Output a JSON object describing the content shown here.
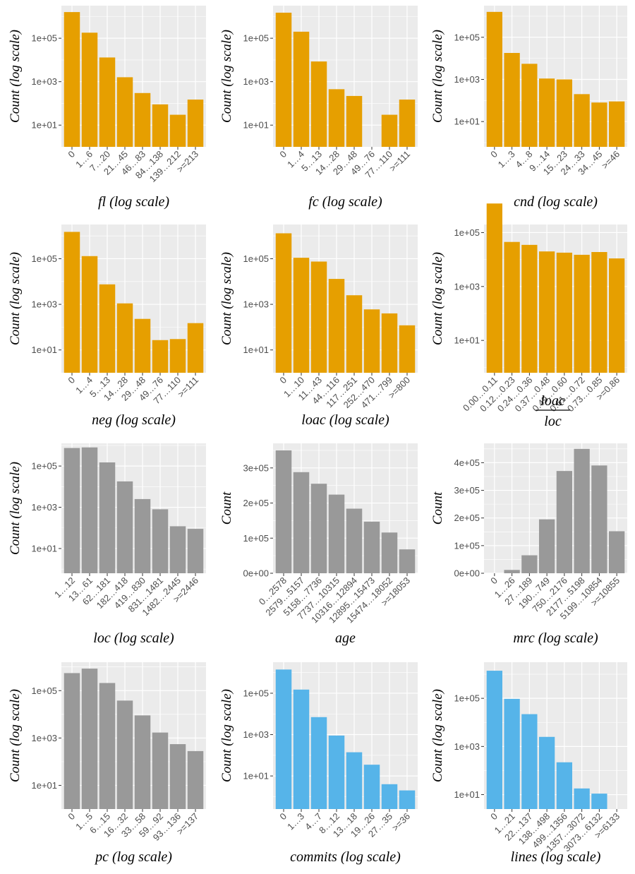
{
  "colors": {
    "orange": "#E69F00",
    "gray": "#999999",
    "blue": "#56B4E9",
    "panel": "#EBEBEB",
    "grid": "#FFFFFF"
  },
  "chart_data": [
    {
      "type": "bar",
      "scale": "log",
      "color": "orange",
      "ylabel": "Count (log scale)",
      "xlabel": "fl (log scale)",
      "categories": [
        "0",
        "1…6",
        "7…20",
        "21…45",
        "46…83",
        "84…138",
        "139…212",
        ">=213"
      ],
      "values": [
        1600000,
        180000,
        13000,
        1600,
        300,
        90,
        30,
        150
      ],
      "yticks": [
        "1e+01",
        "1e+03",
        "1e+05"
      ]
    },
    {
      "type": "bar",
      "scale": "log",
      "color": "orange",
      "ylabel": "Count (log scale)",
      "xlabel": "fc (log scale)",
      "categories": [
        "0",
        "1…4",
        "5…13",
        "14…28",
        "29…48",
        "49…76",
        "77…110",
        ">=111"
      ],
      "values": [
        1500000,
        200000,
        8500,
        450,
        220,
        null,
        30,
        150
      ],
      "yticks": [
        "1e+01",
        "1e+03",
        "1e+05"
      ]
    },
    {
      "type": "bar",
      "scale": "log",
      "color": "orange",
      "ylabel": "Count (log scale)",
      "xlabel": "cnd (log scale)",
      "categories": [
        "0",
        "1…3",
        "4…8",
        "9…14",
        "15…23",
        "24…33",
        "34…45",
        ">=46"
      ],
      "values": [
        1600000,
        18000,
        5500,
        1100,
        1000,
        200,
        80,
        90
      ],
      "yticks": [
        "1e+01",
        "1e+03",
        "1e+05"
      ]
    },
    {
      "type": "bar",
      "scale": "log",
      "color": "orange",
      "ylabel": "Count (log scale)",
      "xlabel": "neg (log scale)",
      "categories": [
        "0",
        "1…4",
        "5…13",
        "14…28",
        "29…48",
        "49…76",
        "77…110",
        ">=111"
      ],
      "values": [
        1500000,
        130000,
        7500,
        1100,
        230,
        27,
        30,
        150
      ],
      "yticks": [
        "1e+01",
        "1e+03",
        "1e+05"
      ]
    },
    {
      "type": "bar",
      "scale": "log",
      "color": "orange",
      "ylabel": "Count (log scale)",
      "xlabel": "loac (log scale)",
      "categories": [
        "0",
        "1…10",
        "11…43",
        "44…116",
        "117…251",
        "252…470",
        "471…799",
        ">=800"
      ],
      "values": [
        1300000,
        110000,
        75000,
        13000,
        2500,
        600,
        400,
        120
      ],
      "yticks": [
        "1e+01",
        "1e+03",
        "1e+05"
      ]
    },
    {
      "type": "bar",
      "scale": "log",
      "color": "orange",
      "ylabel": "Count (log scale)",
      "xlabel_numerator": "loac",
      "xlabel_denominator": "loc",
      "categories": [
        "0.00…0.11",
        "0.12…0.23",
        "0.24…0.36",
        "0.37…0.48",
        "0.49…0.60",
        "0.61…0.72",
        "0.73…0.85",
        ">=0.86"
      ],
      "values": [
        1200000,
        45000,
        35000,
        20000,
        18000,
        15000,
        19000,
        11000
      ],
      "yticks": [
        "1e+01",
        "1e+03",
        "1e+05"
      ]
    },
    {
      "type": "bar",
      "scale": "log",
      "color": "gray",
      "ylabel": "Count (log scale)",
      "xlabel": "loc (log scale)",
      "categories": [
        "1…12",
        "13…61",
        "62…181",
        "182…418",
        "419…830",
        "831…1481",
        "1482…2445",
        ">=2446"
      ],
      "values": [
        750000,
        800000,
        150000,
        18000,
        2500,
        800,
        120,
        90
      ],
      "yticks": [
        "1e+01",
        "1e+03",
        "1e+05"
      ]
    },
    {
      "type": "bar",
      "scale": "linear",
      "color": "gray",
      "ylabel": "Count",
      "xlabel": "age",
      "categories": [
        "0…2578",
        "2579…5157",
        "5158…7736",
        "7737…10315",
        "10316…12894",
        "12895…15473",
        "15474…18052",
        ">=18053"
      ],
      "values": [
        350000,
        288000,
        255000,
        224000,
        184000,
        147000,
        116000,
        68000
      ],
      "ylim": [
        0,
        370000
      ],
      "yticks": [
        "0e+00",
        "1e+05",
        "2e+05",
        "3e+05"
      ]
    },
    {
      "type": "bar",
      "scale": "linear",
      "color": "gray",
      "ylabel": "Count",
      "xlabel": "mrc (log scale)",
      "categories": [
        "0",
        "1…26",
        "27…189",
        "190…749",
        "750…2176",
        "2177…5198",
        "5199…10854",
        ">=10855"
      ],
      "values": [
        0,
        12000,
        65000,
        195000,
        370000,
        450000,
        390000,
        152000
      ],
      "ylim": [
        0,
        470000
      ],
      "yticks": [
        "0e+00",
        "1e+05",
        "2e+05",
        "3e+05",
        "4e+05"
      ]
    },
    {
      "type": "bar",
      "scale": "log",
      "color": "gray",
      "ylabel": "Count (log scale)",
      "xlabel": "pc (log scale)",
      "categories": [
        "0",
        "1…5",
        "6…15",
        "16…32",
        "33…58",
        "59…92",
        "93…136",
        ">=137"
      ],
      "values": [
        550000,
        850000,
        210000,
        38000,
        9000,
        1700,
        550,
        280
      ],
      "yticks": [
        "1e+01",
        "1e+03",
        "1e+05"
      ]
    },
    {
      "type": "bar",
      "scale": "log",
      "color": "blue",
      "ylabel": "Count (log scale)",
      "xlabel": "commits (log scale)",
      "categories": [
        "0",
        "1…3",
        "4…7",
        "8…12",
        "13…18",
        "19…26",
        "27…35",
        ">=36"
      ],
      "values": [
        1400000,
        150000,
        7000,
        900,
        140,
        35,
        4,
        2
      ],
      "yticks": [
        "1e+01",
        "1e+03",
        "1e+05"
      ]
    },
    {
      "type": "bar",
      "scale": "log",
      "color": "blue",
      "ylabel": "Count (log scale)",
      "xlabel": "lines (log scale)",
      "categories": [
        "0",
        "1…21",
        "22…137",
        "138…498",
        "499…1356",
        "1357…3072",
        "3073…6132",
        ">=6133"
      ],
      "values": [
        1400000,
        95000,
        22000,
        2500,
        220,
        18,
        11,
        null
      ],
      "yticks": [
        "1e+01",
        "1e+03",
        "1e+05"
      ]
    }
  ]
}
